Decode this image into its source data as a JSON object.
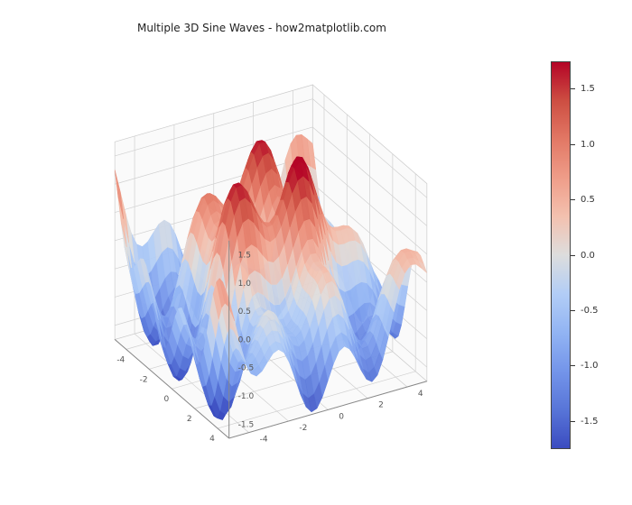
{
  "chart": {
    "type": "surface3d",
    "title": "Multiple 3D Sine Waves - how2matplotlib.com",
    "title_fontsize": 12,
    "background_color": "#ffffff",
    "pane_color": "#f6f6f6",
    "grid_color": "#d0d0d0",
    "x_range": [
      -5,
      5
    ],
    "y_range": [
      -5,
      5
    ],
    "z_range": [
      -1.75,
      1.75
    ],
    "x_ticks": [
      -4,
      -2,
      0,
      2,
      4
    ],
    "y_ticks": [
      -4,
      -2,
      0,
      2,
      4
    ],
    "z_ticks": [
      -1.5,
      -1.0,
      -0.5,
      0.0,
      0.5,
      1.0,
      1.5
    ],
    "tick_fontsize": 9,
    "function": "sin(sqrt(x^2+y^2)) + 0.5*sin(2x) + 0.5*sin(2y)",
    "resolution": 36,
    "colormap": "coolwarm",
    "colormap_stops": [
      [
        0.0,
        "#3b4cc0"
      ],
      [
        0.1,
        "#5875d8"
      ],
      [
        0.2,
        "#7495ea"
      ],
      [
        0.3,
        "#92b4f3"
      ],
      [
        0.4,
        "#b2cdf6"
      ],
      [
        0.5,
        "#dddddd"
      ],
      [
        0.6,
        "#f3c1af"
      ],
      [
        0.7,
        "#ef9d89"
      ],
      [
        0.8,
        "#e27865"
      ],
      [
        0.9,
        "#cd4e42"
      ],
      [
        1.0,
        "#b40426"
      ]
    ],
    "colorbar_ticks": [
      -1.5,
      -1.0,
      -0.5,
      0.0,
      0.5,
      1.0,
      1.5
    ],
    "colorbar_range": [
      -1.75,
      1.75
    ],
    "view": {
      "elev_deg": 30,
      "azim_deg": -60
    },
    "surface_alpha": 0.95
  }
}
